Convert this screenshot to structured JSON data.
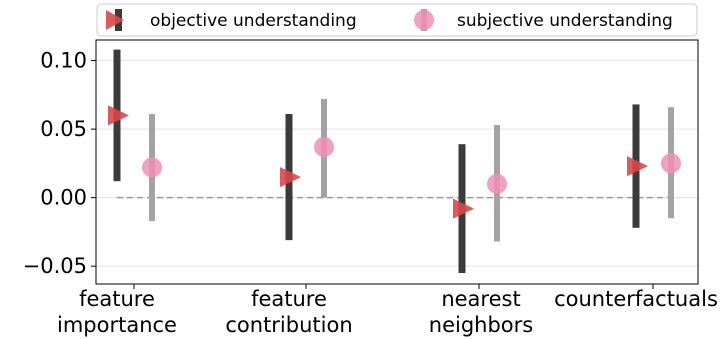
{
  "chart_data": {
    "type": "scatter",
    "title": "",
    "xlabel": "",
    "ylabel": "",
    "categories": [
      [
        "feature",
        "importance"
      ],
      [
        "feature",
        "contribution"
      ],
      [
        "nearest",
        "neighbors"
      ],
      [
        "counterfactuals"
      ]
    ],
    "ylim": [
      -0.063,
      0.115
    ],
    "yticks": [
      -0.05,
      0.0,
      0.05,
      0.1
    ],
    "ytick_labels": [
      "−0.05",
      "0.00",
      "0.05",
      "0.10"
    ],
    "grid": true,
    "zero_reference_line": true,
    "legend_position": "top",
    "series": [
      {
        "name": "objective understanding",
        "marker": "triangle-right",
        "point_color": "#d9474a",
        "bar_color": "#3b3b3b",
        "values": [
          0.06,
          0.015,
          -0.008,
          0.023
        ],
        "lower": [
          0.012,
          -0.031,
          -0.055,
          -0.022
        ],
        "upper": [
          0.108,
          0.061,
          0.039,
          0.068
        ]
      },
      {
        "name": "subjective understanding",
        "marker": "circle",
        "point_color": "#f08fb5",
        "bar_color": "#a3a3a3",
        "values": [
          0.022,
          0.037,
          0.01,
          0.025
        ],
        "lower": [
          -0.017,
          0.0,
          -0.032,
          -0.015
        ],
        "upper": [
          0.061,
          0.072,
          0.053,
          0.066
        ]
      }
    ]
  }
}
